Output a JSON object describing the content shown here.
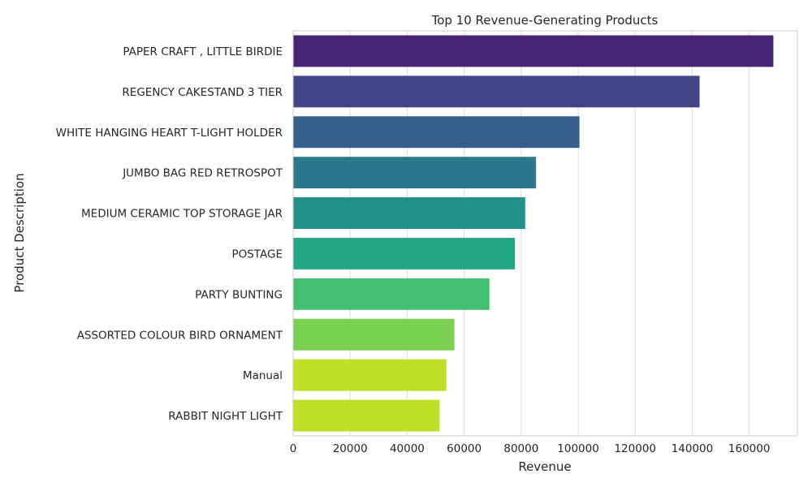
{
  "chart_data": {
    "type": "bar",
    "orientation": "horizontal",
    "title": "Top 10 Revenue-Generating Products",
    "xlabel": "Revenue",
    "ylabel": "Product Description",
    "categories": [
      "PAPER CRAFT , LITTLE BIRDIE",
      "REGENCY CAKESTAND 3 TIER",
      "WHITE HANGING HEART T-LIGHT HOLDER",
      "JUMBO BAG RED RETROSPOT",
      "MEDIUM CERAMIC TOP STORAGE JAR",
      "POSTAGE",
      "PARTY BUNTING",
      "ASSORTED COLOUR BIRD ORNAMENT",
      "Manual",
      "RABBIT NIGHT LIGHT"
    ],
    "values": [
      168470,
      142593,
      100448,
      85220,
      81417,
      77804,
      68844,
      56581,
      53780,
      51346
    ],
    "colors": [
      "#482475",
      "#414487",
      "#355f8d",
      "#2a788e",
      "#21918c",
      "#22a884",
      "#44bf70",
      "#7ad151",
      "#bddf26",
      "#bddf26"
    ],
    "xlim": [
      0,
      176900
    ],
    "xticks": [
      0,
      20000,
      40000,
      60000,
      80000,
      100000,
      120000,
      140000,
      160000
    ],
    "grid": true,
    "legend": "none"
  }
}
